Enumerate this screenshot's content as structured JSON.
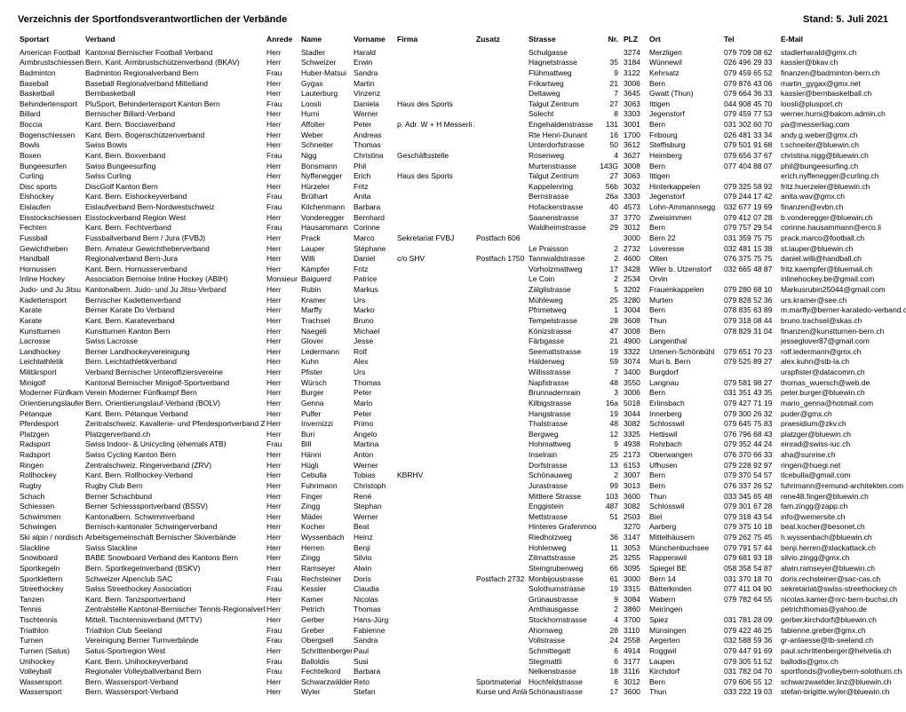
{
  "title": "Verzeichnis der Sportfondsverantwortlichen der Verbände",
  "stand": "Stand: 5. Juli 2021",
  "columns": [
    "Sportart",
    "Verband",
    "Anrede",
    "Name",
    "Vorname",
    "Firma",
    "Zusatz",
    "Strasse",
    "Nr.",
    "PLZ",
    "Ort",
    "Tel",
    "E-Mail"
  ],
  "rows": [
    [
      "American Football",
      "Kantonal Bernischer Football Verband",
      "Herr",
      "Stadler",
      "Harald",
      "",
      "",
      "Schulgasse",
      "",
      "3274",
      "Merzligen",
      "079 709 08 62",
      "stadlerharald@gmx.ch"
    ],
    [
      "Armbrustschiessen",
      "Bern. Kant. Armbrustschützenverband (BKAV)",
      "Herr",
      "Schweizer",
      "Erwin",
      "",
      "",
      "Hagnetstrasse",
      "35",
      "3184",
      "Wünnewil",
      "026 496 29 33",
      "kassier@bkav.ch"
    ],
    [
      "Badminton",
      "Badminton Regionalverband Bern",
      "Frau",
      "Huber-Matsui",
      "Sandra",
      "",
      "",
      "Flühmattweg",
      "9",
      "3122",
      "Kehrsatz",
      "079 459 65 52",
      "finanzen@badminton-bern.ch"
    ],
    [
      "Baseball",
      "Baseball Regionalverband Mittelland",
      "Herr",
      "Gygax",
      "Martin",
      "",
      "",
      "Frikartweg",
      "21",
      "3006",
      "Bern",
      "079 876 43 06",
      "martin_gygax@gmx.net"
    ],
    [
      "Basketball",
      "Bernbasketball",
      "Herr",
      "Lauterburg",
      "Vinzenz",
      "",
      "",
      "Deltaweg",
      "7",
      "3645",
      "Gwatt (Thun)",
      "079 664 36 33",
      "kassier@bernbasketball.ch"
    ],
    [
      "Behindertensport",
      "PluSport, Behindertensport Kanton Bern",
      "Frau",
      "Loosli",
      "Daniela",
      "Haus des Sports",
      "",
      "Talgut Zentrum",
      "27",
      "3063",
      "Ittigen",
      "044 908 45 70",
      "loosli@plusport.ch"
    ],
    [
      "Billard",
      "Bernischer Billard-Verband",
      "Herr",
      "Hurni",
      "Werner",
      "",
      "",
      "Solecht",
      "8",
      "3303",
      "Jegenstorf",
      "079 459 77 53",
      "werner.hurni@bakom.admin.ch"
    ],
    [
      "Boccia",
      "Kant. Bern. Bocciaverband",
      "Herr",
      "Affolter",
      "Peter",
      "p. Adr. W + H Messerli AG",
      "",
      "Engehaldenstrasse",
      "131",
      "3001",
      "Bern",
      "031 302 60 70",
      "pa@messerliag.com"
    ],
    [
      "Bogenschiessen",
      "Kant. Bern. Bogenschützenverband",
      "Herr",
      "Weber",
      "Andreas",
      "",
      "",
      "Rte Henri-Dunant",
      "16",
      "1700",
      "Fribourg",
      "026 481 33 34",
      "andy.g.weber@gmx.ch"
    ],
    [
      "Bowls",
      "Swiss Bowls",
      "Herr",
      "Schneiter",
      "Thomas",
      "",
      "",
      "Unterdorfstrasse",
      "50",
      "3612",
      "Steffisburg",
      "079 501 91 68",
      "t.schneiter@bluewin.ch"
    ],
    [
      "Boxen",
      "Kant. Bern. Boxverband",
      "Frau",
      "Nigg",
      "Christina",
      "Geschäftsstelle",
      "",
      "Rosenweg",
      "4",
      "3627",
      "Heimberg",
      "079 656 37 67",
      "christina.nigg@bluewin.ch"
    ],
    [
      "Bungeesurfen",
      "Swiss Bungeesurfing",
      "Herr",
      "Bonsmann",
      "Phil",
      "",
      "",
      "Murtenstrasse",
      "143G",
      "3008",
      "Bern",
      "077 404 88 07",
      "phil@bungeesurfing.ch"
    ],
    [
      "Curling",
      "Swiss Curling",
      "Herr",
      "Nyffenegger",
      "Erich",
      "Haus des Sports",
      "",
      "Talgut Zentrum",
      "27",
      "3063",
      "Ittigen",
      "",
      "erich.nyffenegger@curling.ch"
    ],
    [
      "Disc sports",
      "DiscGolf Kanton Bern",
      "Herr",
      "Hürzeler",
      "Fritz",
      "",
      "",
      "Kappelenring",
      "56b",
      "3032",
      "Hinterkappelen",
      "079 325 58 92",
      "fritz.huerzeler@bluewin.ch"
    ],
    [
      "Eishockey",
      "Kant. Bern. Eishockeyverband",
      "Frau",
      "Brülhart",
      "Anita",
      "",
      "",
      "Bernstrasse",
      "26a",
      "3303",
      "Jegenstorf",
      "079 244 17 42",
      "anita.wav@gmx.ch"
    ],
    [
      "Eislaufen",
      "Eislaufverband Bern-Nordwestschweiz",
      "Frau",
      "Kilchenmann",
      "Barbara",
      "",
      "",
      "Hofackerstrasse",
      "40",
      "4573",
      "Lohn-Ammannsegg",
      "032 677 19 69",
      "finanzen@evbn.ch"
    ],
    [
      "Eisstockschiessen",
      "Eisstockverband Region West",
      "Herr",
      "Vonderegger",
      "Bernhard",
      "",
      "",
      "Saanenstrasse",
      "37",
      "3770",
      "Zweisimmen",
      "079 412 07 28",
      "b.vonderegger@bluewin.ch"
    ],
    [
      "Fechten",
      "Kant. Bern. Fechtverband",
      "Frau",
      "Hausammann",
      "Corinne",
      "",
      "",
      "Waldheimstrasse",
      "29",
      "3012",
      "Bern",
      "079 757 29 54",
      "corinne.hausammann@erco.li"
    ],
    [
      "Fussball",
      "Fussballverband Bern / Jura (FVBJ)",
      "Herr",
      "Prack",
      "Marco",
      "Sekretariat FVBJ",
      "Postfach 606",
      "",
      "",
      "3000",
      "Bern 22",
      "031 359 75 75",
      "prack.marco@football.ch"
    ],
    [
      "Gewichtheben",
      "Bern. Amateur Gewichtheberverband",
      "Herr",
      "Lauper",
      "Stéphane",
      "",
      "",
      "Le Praisson",
      "2",
      "2732",
      "Loveresse",
      "032 481 15 38",
      "st.lauper@bluewin.ch"
    ],
    [
      "Handball",
      "Regionalverband Bern-Jura",
      "Herr",
      "Willi",
      "Daniel",
      "c/o SHV",
      "Postfach 1750",
      "Tannwaldstrasse",
      "2",
      "4600",
      "Olten",
      "076 375 75 75",
      "daniel.willi@handball.ch"
    ],
    [
      "Hornussen",
      "Kant. Bern. Hornusserverband",
      "Herr",
      "Kämpfer",
      "Fritz",
      "",
      "",
      "Vorholzmattweg",
      "17",
      "3428",
      "Wiler b. Utzenstorf",
      "032 665 48 87",
      "fritz.kaempfer@bluemail.ch"
    ],
    [
      "Inline Hockey",
      "Association Bernoise Inline Hockey (ABIH)",
      "Monsieur",
      "Baiguerd",
      "Patrice",
      "",
      "",
      "Le Coin",
      "2",
      "2534",
      "Orvin",
      "",
      "inlinehockey.be@gmail.com"
    ],
    [
      "Judo- und Ju Jitsu",
      "Kantonalbern. Judo- und Ju Jitsu-Verband",
      "Herr",
      "Rubin",
      "Markus",
      "",
      "",
      "Zälglistrasse",
      "5",
      "3202",
      "Frauenkappelen",
      "079 280 68 10",
      "Markusrubin25044@gmail.com"
    ],
    [
      "Kadettensport",
      "Bernischer Kadettenverband",
      "Herr",
      "Kramer",
      "Urs",
      "",
      "",
      "Mühleweg",
      "25",
      "3280",
      "Murten",
      "079 828 52 36",
      "urs.kramer@see.ch"
    ],
    [
      "Karate",
      "Berner Karate Do Verband",
      "Herr",
      "Marffy",
      "Marko",
      "",
      "",
      "Pfrimetweg",
      "1",
      "3004",
      "Bern",
      "078 835 63 89",
      "m.marffy@berner-karatedo-verband.ch"
    ],
    [
      "Karate",
      "Kant. Bern. Karateverband",
      "Herr",
      "Trachsel",
      "Bruno",
      "",
      "",
      "Tempelstrasse",
      "28",
      "3608",
      "Thun",
      "079 318 08 44",
      "bruno.trachsel@skas.ch"
    ],
    [
      "Kunstturnen",
      "Kunstturnen Kanton Bern",
      "Herr",
      "Naegeli",
      "Michael",
      "",
      "",
      "Könizstrasse",
      "47",
      "3008",
      "Bern",
      "078 829 31 04",
      "finanzen@kunstturnen-bern.ch"
    ],
    [
      "Lacrosse",
      "Swiss Lacrosse",
      "Herr",
      "Glover",
      "Jesse",
      "",
      "",
      "Färbgasse",
      "21",
      "4900",
      "Langenthal",
      "",
      "jesseglover87@gmail.com"
    ],
    [
      "Landhockey",
      "Berner Landhockeyvereinigung",
      "Herr",
      "Ledermann",
      "Rolf",
      "",
      "",
      "Seemattstrasse",
      "19",
      "3322",
      "Urtenen-Schönbühl",
      "079 651 70 23",
      "rolf.ledermann@gmx.ch"
    ],
    [
      "Leichtathletik",
      "Bern. Leichtathletikverband",
      "Herr",
      "Kuhn",
      "Alex",
      "",
      "",
      "Halderweg",
      "59",
      "3074",
      "Muri b. Bern",
      "079 525 89 27",
      "alex.kuhn@stb-la.ch"
    ],
    [
      "Militärsport",
      "Verband Bernischer Unteroffiziersvereine",
      "Herr",
      "Pfister",
      "Urs",
      "",
      "",
      "Willisstrasse",
      "7",
      "3400",
      "Burgdorf",
      "",
      "urspfister@datacomm.ch"
    ],
    [
      "Minigolf",
      "Kantonal Bernischer Minigolf-Sportverband",
      "Herr",
      "Würsch",
      "Thomas",
      "",
      "",
      "Napfstrasse",
      "48",
      "3550",
      "Langnau",
      "079 581 98 27",
      "thomas_wuersch@web.de"
    ],
    [
      "Moderner Fünfkampf",
      "Verein Moderner Fünfkampf Bern",
      "Herr",
      "Burger",
      "Peter",
      "",
      "",
      "Brunnadernrain",
      "3",
      "3006",
      "Bern",
      "031 351 43 35",
      "peter.burger@bluewin.ch"
    ],
    [
      "Orientierungslaufen",
      "Bern. Orientierungslauf-Verband (BOLV)",
      "Herr",
      "Genna",
      "Mario",
      "",
      "",
      "Kilbigstrasse",
      "16a",
      "5018",
      "Erlinsbach",
      "079 427 71 19",
      "mario_genna@hotmail.com"
    ],
    [
      "Pétanque",
      "Kant. Bern. Pétanque Verband",
      "Herr",
      "Pulfer",
      "Peter",
      "",
      "",
      "Hangstrasse",
      "19",
      "3044",
      "Innerberg",
      "079 300 26 32",
      "puder@gmx.ch"
    ],
    [
      "Pferdesport",
      "Zentralschweiz. Kavallerie- und Pferdesportverband ZKV",
      "Herr",
      "Invernizzi",
      "Primo",
      "",
      "",
      "Thalstrasse",
      "48",
      "3082",
      "Schlosswil",
      "079 645 75 83",
      "praesidium@zkv.ch"
    ],
    [
      "Platzgen",
      "Platzgerverband.ch",
      "Herr",
      "Buri",
      "Angelo",
      "",
      "",
      "Bergweg",
      "12",
      "3325",
      "Hettiswil",
      "076 796 68 43",
      "platzger@bluewin.ch"
    ],
    [
      "Radsport",
      "Swiss Indoor- & Unicycling (ehemals ATB)",
      "Frau",
      "Bill",
      "Martina",
      "",
      "",
      "Hohmattweg",
      "9",
      "4938",
      "Rohrbach",
      "079 352 44 24",
      "einrad@swiss-iuc.ch"
    ],
    [
      "Radsport",
      "Swiss Cycling Kanton Bern",
      "Herr",
      "Hänni",
      "Anton",
      "",
      "",
      "Inselrain",
      "25",
      "2173",
      "Oberwangen",
      "076 370 66 33",
      "aha@sunrise.ch"
    ],
    [
      "Ringen",
      "Zentralschweiz. Ringerverband (ZRV)",
      "Herr",
      "Hügli",
      "Werner",
      "",
      "",
      "Dorfstrasse",
      "13",
      "6153",
      "Ufhusen",
      "079 228 92 97",
      "ringen@huegi.net"
    ],
    [
      "Rollhockey",
      "Kant. Bern. Rollhockey-Verband",
      "Herr",
      "Cebulla",
      "Tobias",
      "KBRHV",
      "",
      "Schönauweg",
      "2",
      "3007",
      "Bern",
      "079 370 54 57",
      "tlcebulla@gmail.com"
    ],
    [
      "Rugby",
      "Rugby Club Bern",
      "Herr",
      "Fuhrimann",
      "Christoph",
      "",
      "",
      "Jurastrasse",
      "99",
      "3013",
      "Bern",
      "076 337 26 52",
      "fuhrimann@remund-architekten.com"
    ],
    [
      "Schach",
      "Berner Schachbund",
      "Herr",
      "Finger",
      "René",
      "",
      "",
      "Mittlere Strasse",
      "103",
      "3600",
      "Thun",
      "033 345 65 48",
      "rene48.finger@bluewin.ch"
    ],
    [
      "Schiessen",
      "Berner Schiesssportverband (BSSV)",
      "Herr",
      "Zingg",
      "Stephan",
      "",
      "",
      "Enggistein",
      "487",
      "3082",
      "Schlosswil",
      "079 301 67 28",
      "fam.zingg@zapp.ch"
    ],
    [
      "Schwimmen",
      "Kantonalbern. Schwimmverband",
      "Herr",
      "Mäder",
      "Werner",
      "",
      "",
      "Mettstrasse",
      "51",
      "2503",
      "Biel",
      "079 318 43 54",
      "info@wemersite.ch"
    ],
    [
      "Schwingen",
      "Bernisch-kantonaler Schwingerverband",
      "Herr",
      "Kocher",
      "Beat",
      "",
      "",
      "Hinteres Grafenmoos",
      "",
      "3270",
      "Aarberg",
      "079 375 10 18",
      "beat.kocher@besonet.ch"
    ],
    [
      "Ski alpin / nordisch",
      "Arbeitsgemeinschaft Bernischer Skiverbände",
      "Herr",
      "Wyssenbach",
      "Heinz",
      "",
      "",
      "Riedholzweg",
      "36",
      "3147",
      "Mittelhäusern",
      "079 262 75 45",
      "h.wyssenbach@bluewin.ch"
    ],
    [
      "Slackline",
      "Swiss Slackline",
      "Herr",
      "Herren",
      "Benji",
      "",
      "",
      "Hohlenweg",
      "11",
      "3053",
      "Münchenbuchsee",
      "079 791 57 44",
      "benji.herren@slackattack.ch"
    ],
    [
      "Snowboard",
      "BABE Snowboard Verband des Kantons Bern",
      "Herr",
      "Zingg",
      "Silvio",
      "",
      "",
      "Zilmattstrasse",
      "25",
      "3255",
      "Rapperswil",
      "079 681 93 18",
      "silvio.zingg@gmx.ch"
    ],
    [
      "Sportkegeln",
      "Bern. Sportkegelnverband (BSKV)",
      "Herr",
      "Ramseyer",
      "Alwin",
      "",
      "",
      "Steingrubenweg",
      "66",
      "3095",
      "Spiegel BE",
      "058 358 54 87",
      "alwin.ramseyer@bluewin.ch"
    ],
    [
      "Sportklettern",
      "Schweizer Alpenclub SAC",
      "Frau",
      "Rechsteiner",
      "Doris",
      "",
      "Postfach 2732",
      "Monbijoustrasse",
      "61",
      "3000",
      "Bern 14",
      "031 370 18 70",
      "doris.rechsteiner@sac-cas.ch"
    ],
    [
      "Streethockey",
      "Swiss Streethockey Association",
      "Frau",
      "Kessler",
      "Claudia",
      "",
      "",
      "Solothurnstrasse",
      "19",
      "3315",
      "Bätterkinden",
      "077 411 04 90",
      "sekretariat@swiss-streethockey.ch"
    ],
    [
      "Tanzen",
      "Kant. Bern. Tanzsportverband",
      "Herr",
      "Kamer",
      "Nicolas",
      "",
      "",
      "Grünaustrasse",
      "9",
      "3084",
      "Wabern",
      "079 782 64 55",
      "nicolas.kamer@nrc-bern-buchsi.ch"
    ],
    [
      "Tennis",
      "Zentralstelle Kantonal-Bernischer Tennis-Regionalverbände",
      "Herr",
      "Petrich",
      "Thomas",
      "",
      "",
      "Amthausgasse",
      "2",
      "3860",
      "Meiringen",
      "",
      "petrichthomas@yahoo.de"
    ],
    [
      "Tischtennis",
      "Mittell. Tischtennisverband (MTTV)",
      "Herr",
      "Gerber",
      "Hans-Jürg",
      "",
      "",
      "Stockhornstrasse",
      "4",
      "3700",
      "Spiez",
      "031 781 28 09",
      "gerber.kirchdorf@bluewin.ch"
    ],
    [
      "Triathlon",
      "Triathlon Club Seeland",
      "Frau",
      "Greber",
      "Fabienne",
      "",
      "",
      "Ahornweg",
      "28",
      "3110",
      "Münsingen",
      "079 422 46 25",
      "fabienne.greber@gmx.ch"
    ],
    [
      "Turnen",
      "Vereinigung Berner Turnverbände",
      "Frau",
      "Obergsell",
      "Sandra",
      "",
      "",
      "Vollstrasse",
      "24",
      "2558",
      "Aegerten",
      "032 588 59 36",
      "gr-anlaesse@tb-seeland.ch"
    ],
    [
      "Turnen (Satus)",
      "Satus-Sportregion West",
      "Herr",
      "Schrittenberger",
      "Paul",
      "",
      "",
      "Schmittegatt",
      "6",
      "4914",
      "Roggwil",
      "079 447 91 69",
      "paul.schrittenberger@helvetia.ch"
    ],
    [
      "Unihockey",
      "Kant. Bern. Unihockeyverband",
      "Frau",
      "Balloldis",
      "Susi",
      "",
      "",
      "Stegmattli",
      "6",
      "3177",
      "Laupen",
      "079 305 51 52",
      "ballodis@gmx.ch"
    ],
    [
      "Volleyball",
      "Regionaler Volleyballverband Bern",
      "Frau",
      "Fechtelkord",
      "Barbara",
      "",
      "",
      "Nelkenstrasse",
      "18",
      "3116",
      "Kirchdorf",
      "031 782 04 70",
      "sportfonds@volleybern-solothurn.ch"
    ],
    [
      "Wassersport",
      "Bern. Wassersport-Verband",
      "Herr",
      "Schwarzwälder",
      "Reto",
      "",
      "Sportmaterial",
      "Hochfeldstrasse",
      "6",
      "3012",
      "Bern",
      "079 606 55 12",
      "schwarzwaelder.linz@bluewin.ch"
    ],
    [
      "Wassersport",
      "Bern. Wassersport-Verband",
      "Herr",
      "Wyler",
      "Stefan",
      "",
      "Kurse und Anlässe",
      "Schönaustrasse",
      "17",
      "3600",
      "Thun",
      "033 222 19 03",
      "stefan-brigitte.wyler@bluewin.ch"
    ]
  ]
}
